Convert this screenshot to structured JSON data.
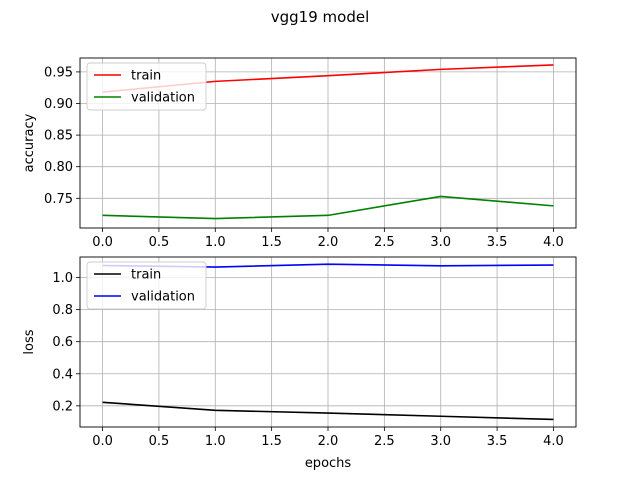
{
  "figure": {
    "title": "vgg19 model"
  },
  "chart_data": [
    {
      "type": "line",
      "title": "",
      "xlabel": "",
      "ylabel": "accuracy",
      "x": [
        0,
        1,
        2,
        3,
        4
      ],
      "xlim": [
        -0.2,
        4.2
      ],
      "ylim": [
        0.703,
        0.972
      ],
      "xticks": [
        0.0,
        0.5,
        1.0,
        1.5,
        2.0,
        2.5,
        3.0,
        3.5,
        4.0
      ],
      "xtick_labels": [
        "0.0",
        "0.5",
        "1.0",
        "1.5",
        "2.0",
        "2.5",
        "3.0",
        "3.5",
        "4.0"
      ],
      "yticks": [
        0.75,
        0.8,
        0.85,
        0.9,
        0.95
      ],
      "ytick_labels": [
        "0.75",
        "0.80",
        "0.85",
        "0.90",
        "0.95"
      ],
      "grid": true,
      "legend_position": "upper left",
      "series": [
        {
          "name": "train",
          "color": "#ff0000",
          "values": [
            0.918,
            0.935,
            0.944,
            0.954,
            0.961
          ]
        },
        {
          "name": "validation",
          "color": "#008000",
          "values": [
            0.723,
            0.718,
            0.723,
            0.753,
            0.738
          ]
        }
      ]
    },
    {
      "type": "line",
      "title": "",
      "xlabel": "epochs",
      "ylabel": "loss",
      "x": [
        0,
        1,
        2,
        3,
        4
      ],
      "xlim": [
        -0.2,
        4.2
      ],
      "ylim": [
        0.068,
        1.128
      ],
      "xticks": [
        0.0,
        0.5,
        1.0,
        1.5,
        2.0,
        2.5,
        3.0,
        3.5,
        4.0
      ],
      "xtick_labels": [
        "0.0",
        "0.5",
        "1.0",
        "1.5",
        "2.0",
        "2.5",
        "3.0",
        "3.5",
        "4.0"
      ],
      "yticks": [
        0.2,
        0.4,
        0.6,
        0.8,
        1.0
      ],
      "ytick_labels": [
        "0.2",
        "0.4",
        "0.6",
        "0.8",
        "1.0"
      ],
      "grid": true,
      "legend_position": "upper left",
      "series": [
        {
          "name": "train",
          "color": "#000000",
          "values": [
            0.222,
            0.172,
            0.155,
            0.135,
            0.115
          ]
        },
        {
          "name": "validation",
          "color": "#0000ff",
          "values": [
            1.075,
            1.065,
            1.083,
            1.073,
            1.078
          ]
        }
      ]
    }
  ]
}
